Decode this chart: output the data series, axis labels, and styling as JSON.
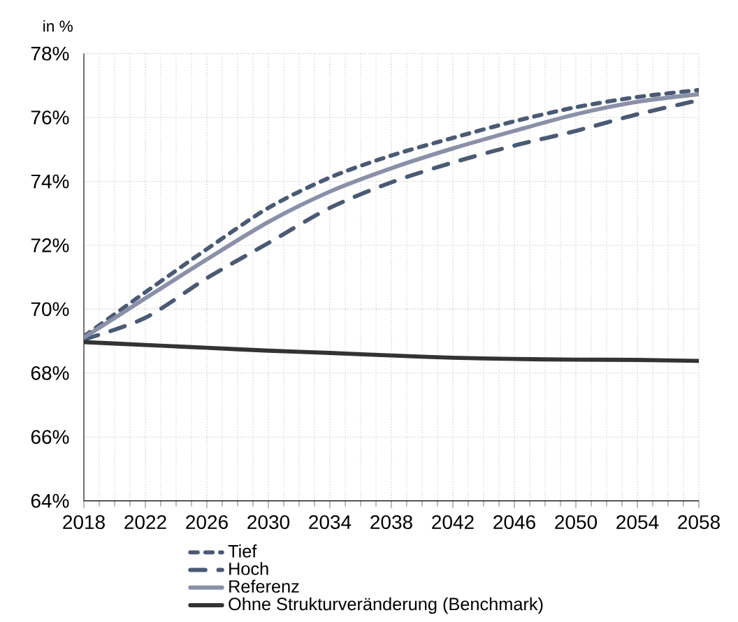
{
  "chart_data": {
    "type": "line",
    "ylabel": "in %",
    "x": [
      2018,
      2022,
      2026,
      2030,
      2034,
      2038,
      2042,
      2046,
      2050,
      2054,
      2058
    ],
    "series": [
      {
        "name": "Tief",
        "color": "#4a5a75",
        "line_style": "dashed",
        "values": [
          69.15,
          70.53,
          71.88,
          73.17,
          74.12,
          74.81,
          75.36,
          75.88,
          76.32,
          76.64,
          76.86
        ]
      },
      {
        "name": "Hoch",
        "color": "#4a5a75",
        "line_style": "dashed",
        "values": [
          69.05,
          69.73,
          70.97,
          72.07,
          73.17,
          73.97,
          74.59,
          75.12,
          75.58,
          76.1,
          76.54
        ]
      },
      {
        "name": "Referenz",
        "color": "#8a90a8",
        "line_style": "solid",
        "values": [
          69.11,
          70.34,
          71.56,
          72.73,
          73.68,
          74.41,
          75.03,
          75.58,
          76.1,
          76.49,
          76.73
        ]
      },
      {
        "name": "Ohne Strukturveränderung (Benchmark)",
        "color": "#333333",
        "line_style": "solid",
        "values": [
          68.97,
          68.88,
          68.79,
          68.7,
          68.63,
          68.55,
          68.48,
          68.44,
          68.42,
          68.41,
          68.38
        ]
      }
    ],
    "xlim": [
      2018,
      2058
    ],
    "ylim": [
      64,
      78
    ],
    "xticks": [
      2018,
      2022,
      2026,
      2030,
      2034,
      2038,
      2042,
      2046,
      2050,
      2054,
      2058
    ],
    "yticks": [
      {
        "value": 64,
        "label": "64%"
      },
      {
        "value": 66,
        "label": "66%"
      },
      {
        "value": 68,
        "label": "68%"
      },
      {
        "value": 70,
        "label": "70%"
      },
      {
        "value": 72,
        "label": "72%"
      },
      {
        "value": 74,
        "label": "74%"
      },
      {
        "value": 76,
        "label": "76%"
      },
      {
        "value": 78,
        "label": "78%"
      }
    ],
    "grid": true,
    "legend": "bottom",
    "marker": "none"
  }
}
